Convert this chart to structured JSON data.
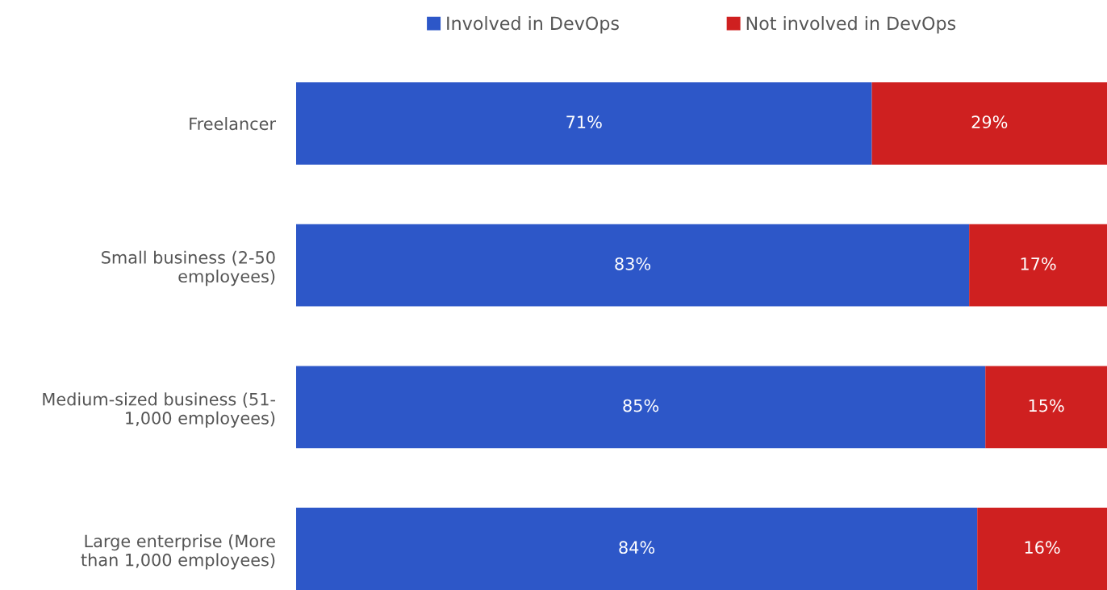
{
  "chart_data": {
    "type": "bar",
    "orientation": "horizontal",
    "stacked": true,
    "legend": "top",
    "grid": false,
    "categories": [
      "Freelancer",
      "Small business (2-50\nemployees)",
      "Medium-sized business (51-\n1,000 employees)",
      "Large enterprise (More\nthan 1,000 employees)"
    ],
    "series": [
      {
        "name": "Involved in DevOps",
        "color": "#2d57c8",
        "values": [
          71,
          83,
          85,
          84
        ],
        "value_labels": [
          "71%",
          "83%",
          "85%",
          "84%"
        ]
      },
      {
        "name": "Not involved in DevOps",
        "color": "#cf2020",
        "values": [
          29,
          17,
          15,
          16
        ],
        "value_labels": [
          "29%",
          "17%",
          "15%",
          "16%"
        ]
      }
    ]
  }
}
